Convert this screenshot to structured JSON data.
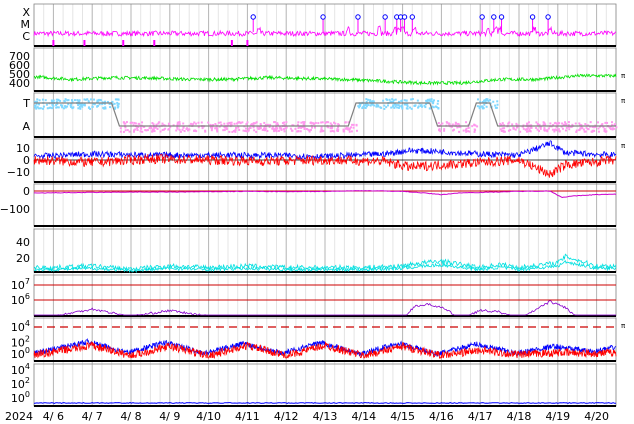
{
  "chart_data": {
    "type": "line",
    "title": "",
    "x_axis": {
      "year_label": "2024",
      "tick_labels": [
        "4/ 6",
        "4/ 7",
        "4/ 8",
        "4/ 9",
        "4/10",
        "4/11",
        "4/12",
        "4/13",
        "4/14",
        "4/15",
        "4/16",
        "4/17",
        "4/18",
        "4/19",
        "4/20"
      ],
      "range_days": [
        "4/5 12:00",
        "4/20 12:00"
      ],
      "grid": true
    },
    "panels": [
      {
        "id": "flare-class",
        "type": "line",
        "y_tick_labels": [
          "X",
          "M",
          "C"
        ],
        "colors": {
          "line": "#ff00ff",
          "marker": "#0000ff"
        },
        "series": [
          {
            "name": "",
            "baseline": "C",
            "spikes_days": [
              11.3,
              13.6,
              14.4,
              14.8,
              14.9,
              15.0,
              15.3,
              17.2,
              17.4,
              17.5,
              18.4,
              18.8
            ]
          }
        ],
        "circle_marker_days": [
          11.15,
          12.95,
          13.85,
          14.55,
          14.85,
          14.95,
          15.05,
          15.25,
          17.05,
          17.35,
          17.55,
          18.35,
          18.75
        ]
      },
      {
        "id": "solar-wind-speed",
        "type": "line",
        "y_tick_labels": [
          "700",
          "600",
          "500",
          "400"
        ],
        "ylim": [
          300,
          750
        ],
        "colors": {
          "line": "#00e000"
        },
        "series": [
          {
            "name": "",
            "x_days": [
              5.5,
              6.5,
              7.5,
              8.5,
              9.5,
              10.5,
              11.5,
              12.5,
              13.5,
              14.5,
              15.5,
              16.5,
              17.5,
              18.5,
              19.5,
              20.5
            ],
            "values": [
              470,
              440,
              460,
              455,
              440,
              440,
              460,
              450,
              440,
              420,
              400,
              400,
              440,
              440,
              480,
              480
            ]
          }
        ],
        "side_label": "π"
      },
      {
        "id": "imf-sector",
        "type": "line",
        "y_tick_labels": [
          "T",
          "A"
        ],
        "colors": {
          "toward": "#80d8ff",
          "away": "#ff99ee",
          "sector_line": "#808080"
        },
        "series": [
          {
            "name": "",
            "x_days": [
              5.5,
              7.5,
              7.7,
              13.6,
              13.8,
              15.7,
              15.9,
              16.7,
              16.9,
              17.25,
              17.45,
              20.5
            ],
            "values": [
              "T",
              "T",
              "A",
              "A",
              "T",
              "T",
              "A",
              "A",
              "T",
              "T",
              "A",
              "A"
            ]
          }
        ],
        "side_label": "π"
      },
      {
        "id": "imf-components",
        "type": "line",
        "y_tick_labels": [
          "10",
          "0",
          "−10"
        ],
        "ylim": [
          -20,
          15
        ],
        "colors": {
          "bt": "#0000ff",
          "bz": "#ff0000",
          "zero": "#000000"
        },
        "series": [
          {
            "name": "",
            "x_days": [
              5.5,
              7.0,
              8.5,
              10.0,
              11.5,
              13.0,
              14.5,
              15.2,
              16.0,
              17.0,
              18.0,
              18.8,
              19.2,
              20.5
            ],
            "values": [
              3,
              5,
              4,
              4,
              4,
              3,
              5,
              8,
              7,
              5,
              4,
              14,
              6,
              4
            ]
          },
          {
            "name": "",
            "x_days": [
              5.5,
              7.0,
              8.5,
              10.0,
              11.5,
              13.0,
              14.5,
              15.2,
              16.0,
              17.0,
              18.0,
              18.8,
              19.2,
              20.5
            ],
            "values": [
              0,
              -2,
              1,
              0,
              -1,
              0,
              -1,
              -6,
              -4,
              -2,
              0,
              -12,
              -4,
              0
            ]
          }
        ],
        "side_label": "π"
      },
      {
        "id": "dst-index",
        "type": "line",
        "y_tick_labels": [
          "0",
          "−100"
        ],
        "ylim": [
          -150,
          20
        ],
        "colors": {
          "line": "#cc00cc",
          "zero": "#cc0000"
        },
        "series": [
          {
            "name": "",
            "x_days": [
              5.5,
              6.0,
              7.0,
              8.0,
              9.0,
              10.0,
              11.0,
              12.0,
              13.0,
              14.0,
              15.0,
              15.5,
              16.0,
              16.5,
              17.0,
              17.5,
              18.0,
              18.8,
              19.1,
              19.4,
              20.0,
              20.5
            ],
            "values": [
              -12,
              -10,
              -8,
              -6,
              -6,
              -4,
              -2,
              -4,
              -2,
              2,
              -2,
              -10,
              -20,
              -10,
              -8,
              -5,
              -2,
              0,
              -35,
              -28,
              -20,
              -18
            ]
          }
        ]
      },
      {
        "id": "kp-like",
        "type": "line",
        "y_tick_labels": [
          "40",
          "20"
        ],
        "ylim": [
          0,
          55
        ],
        "colors": {
          "line": "#00e0e0"
        },
        "series": [
          {
            "name": "",
            "x_days": [
              5.5,
              6.0,
              7.0,
              8.0,
              9.0,
              10.0,
              11.0,
              12.0,
              13.0,
              14.0,
              15.0,
              15.5,
              16.0,
              17.0,
              17.5,
              18.0,
              19.0,
              19.2,
              20.0,
              20.5
            ],
            "values": [
              8,
              8,
              10,
              6,
              10,
              8,
              10,
              8,
              8,
              8,
              10,
              14,
              16,
              8,
              12,
              8,
              14,
              22,
              10,
              10
            ]
          }
        ]
      },
      {
        "id": "electron-flux",
        "type": "line",
        "y_tick_labels": [
          "10^7",
          "10^6"
        ],
        "colors": {
          "line": "#8800cc",
          "threshold": "#cc0000"
        },
        "series": [
          {
            "name": "",
            "x_days": [
              5.5,
              6.0,
              7.0,
              8.0,
              9.0,
              10.0,
              11.0,
              12.0,
              13.0,
              14.0,
              15.0,
              15.3,
              15.7,
              16.0,
              16.5,
              17.0,
              17.5,
              18.0,
              18.8,
              19.2,
              19.5,
              20.5
            ],
            "values": [
              4.6,
              4.9,
              5.4,
              4.9,
              5.3,
              4.9,
              4.8,
              4.7,
              4.7,
              4.6,
              4.6,
              5.6,
              5.7,
              5.5,
              4.8,
              5.3,
              5.2,
              4.7,
              5.9,
              5.5,
              4.8,
              4.8
            ]
          }
        ]
      },
      {
        "id": "proton-flux",
        "type": "line",
        "y_tick_labels": [
          "10^4",
          "10^2",
          "10^0"
        ],
        "colors": {
          "p1": "#0000ff",
          "p2": "#ff0000",
          "threshold": "#cc0000"
        },
        "series": [
          {
            "name": "",
            "x_days": [
              5.5,
              6.9,
              7.9,
              8.9,
              9.9,
              10.9,
              11.9,
              12.9,
              13.9,
              14.9,
              15.9,
              16.9,
              17.9,
              18.9,
              19.9,
              20.5
            ],
            "values": [
              0.6,
              2.1,
              0.7,
              2.0,
              0.6,
              1.9,
              0.6,
              2.0,
              0.5,
              1.9,
              0.5,
              1.8,
              0.6,
              1.5,
              0.8,
              1.4
            ]
          },
          {
            "name": "",
            "x_days": [
              5.5,
              7.0,
              8.0,
              9.0,
              10.0,
              11.0,
              12.0,
              13.0,
              14.0,
              15.0,
              16.0,
              17.0,
              18.0,
              19.0,
              20.0,
              20.5
            ],
            "values": [
              0.4,
              1.6,
              0.3,
              1.5,
              0.3,
              1.6,
              0.3,
              1.6,
              0.3,
              1.5,
              0.3,
              1.0,
              0.4,
              0.7,
              0.6,
              0.7
            ]
          }
        ],
        "side_label": "π"
      },
      {
        "id": "low-flux",
        "type": "line",
        "y_tick_labels": [
          "10^4",
          "10^2",
          "10^0"
        ],
        "colors": {
          "line": "#0000ff"
        },
        "series": [
          {
            "name": "",
            "x_days": [
              5.5,
              20.5
            ],
            "values": [
              -0.3,
              -0.3
            ]
          }
        ]
      }
    ]
  }
}
